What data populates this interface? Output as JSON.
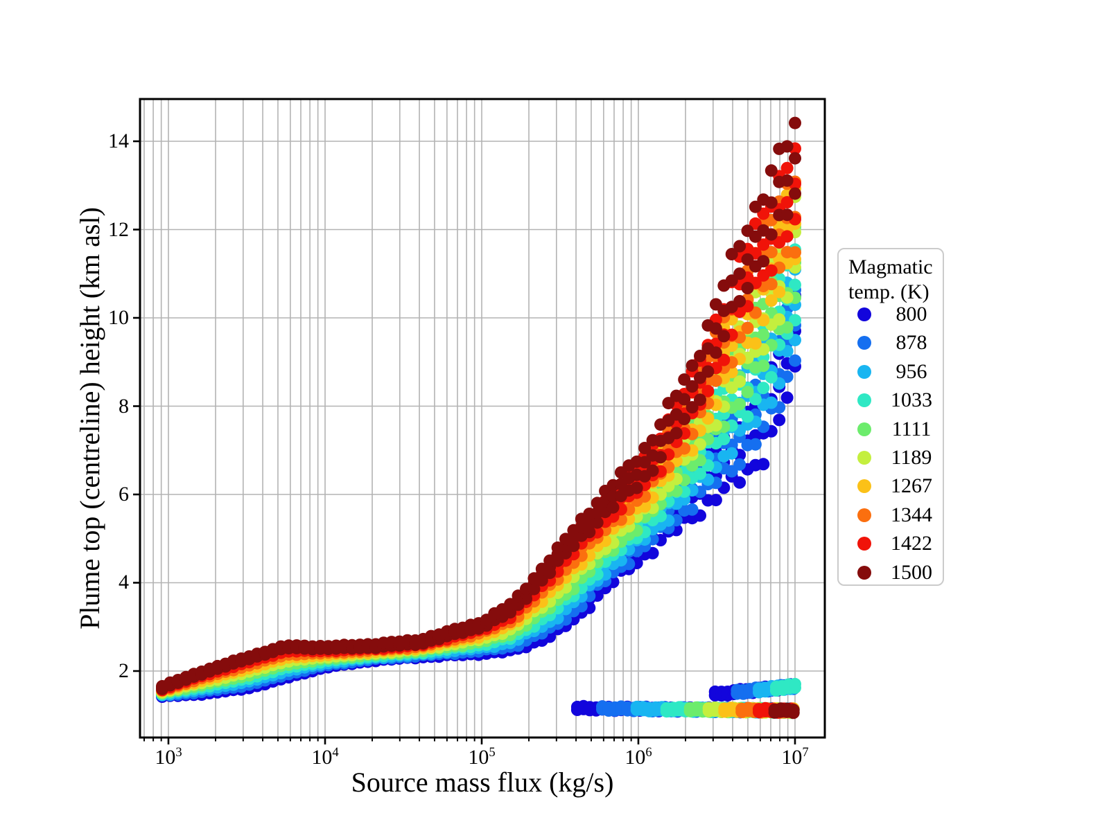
{
  "figure": {
    "background": "#ffffff"
  },
  "chart_data": {
    "type": "scatter",
    "title": "",
    "xlabel": "Source mass flux (kg/s)",
    "ylabel": "Plume top (centreline) height (km asl)",
    "x_scale": "log10",
    "x_tick_exponents": [
      3,
      4,
      5,
      6,
      7
    ],
    "y_ticks": [
      2,
      4,
      6,
      8,
      10,
      12,
      14
    ],
    "x_range_log10": [
      2.8186,
      7.1903
    ],
    "y_range": [
      0.494,
      14.957
    ],
    "grid": {
      "show": true,
      "color": "#b3b3b3",
      "minor_vertical": true
    },
    "legend": {
      "title_lines": [
        "Magmatic",
        "temp. (K)"
      ],
      "position": "right"
    },
    "series": [
      {
        "temp": 800,
        "color": "#1205DC"
      },
      {
        "temp": 878,
        "color": "#156FF0"
      },
      {
        "temp": 956,
        "color": "#19B5F1"
      },
      {
        "temp": 1033,
        "color": "#2FE8C4"
      },
      {
        "temp": 1111,
        "color": "#6CEC6C"
      },
      {
        "temp": 1189,
        "color": "#C4EF3E"
      },
      {
        "temp": 1267,
        "color": "#FBC118"
      },
      {
        "temp": 1344,
        "color": "#FB6F0F"
      },
      {
        "temp": 1422,
        "color": "#F01309"
      },
      {
        "temp": 1500,
        "color": "#850C0C"
      }
    ],
    "model": {
      "q_start": 2.96,
      "q_end": 7.0,
      "main_samples": 80,
      "sub_points_per_sample": 3,
      "height_curve_800K": [
        [
          2.96,
          1.45
        ],
        [
          3.2,
          1.5
        ],
        [
          3.5,
          1.63
        ],
        [
          3.75,
          1.87
        ],
        [
          4.0,
          2.11
        ],
        [
          4.3,
          2.27
        ],
        [
          4.6,
          2.36
        ],
        [
          5.0,
          2.45
        ],
        [
          5.2,
          2.55
        ],
        [
          5.45,
          2.95
        ],
        [
          5.61,
          3.4
        ],
        [
          5.77,
          4.05
        ],
        [
          6.07,
          5.05
        ],
        [
          6.36,
          6.05
        ],
        [
          6.62,
          6.9
        ],
        [
          6.8,
          7.6
        ],
        [
          6.9,
          8.4
        ],
        [
          7.0,
          9.5
        ]
      ],
      "height_curve_1500K": [
        [
          2.96,
          1.63
        ],
        [
          3.2,
          1.95
        ],
        [
          3.5,
          2.29
        ],
        [
          3.75,
          2.55
        ],
        [
          4.0,
          2.53
        ],
        [
          4.3,
          2.57
        ],
        [
          4.6,
          2.66
        ],
        [
          5.0,
          3.05
        ],
        [
          5.2,
          3.45
        ],
        [
          5.45,
          4.45
        ],
        [
          5.61,
          5.13
        ],
        [
          5.77,
          5.73
        ],
        [
          6.07,
          6.82
        ],
        [
          6.36,
          8.52
        ],
        [
          6.62,
          10.85
        ],
        [
          6.8,
          12.2
        ],
        [
          6.9,
          12.9
        ],
        [
          7.0,
          13.45
        ]
      ],
      "height_spread_half_range": [
        [
          2.96,
          0.03
        ],
        [
          4.0,
          0.03
        ],
        [
          5.0,
          0.06
        ],
        [
          5.5,
          0.15
        ],
        [
          6.0,
          0.3
        ],
        [
          6.5,
          0.55
        ],
        [
          7.0,
          0.8
        ]
      ],
      "collapsed_band_low": {
        "h_ref": 1.19,
        "q_ref": 5.6,
        "slope_per_decade": -0.04,
        "row_offset": 0.065,
        "rows": 2,
        "q_step": 0.04,
        "q_end": 7.0,
        "start_log10_flux_per_series": [
          5.61,
          5.77,
          5.99,
          6.18,
          6.33,
          6.45,
          6.55,
          6.66,
          6.77,
          6.87
        ]
      },
      "collapsed_band_mid": {
        "h_ref": 1.44,
        "q_ref": 6.5,
        "slope_per_decade": 0.35,
        "row_offset": 0.08,
        "rows": 2,
        "q_step": 0.04,
        "q_end": 7.0,
        "series_indices": [
          0,
          1,
          2,
          3
        ],
        "start_log10_flux": [
          6.49,
          6.63,
          6.77,
          6.88
        ]
      }
    }
  }
}
